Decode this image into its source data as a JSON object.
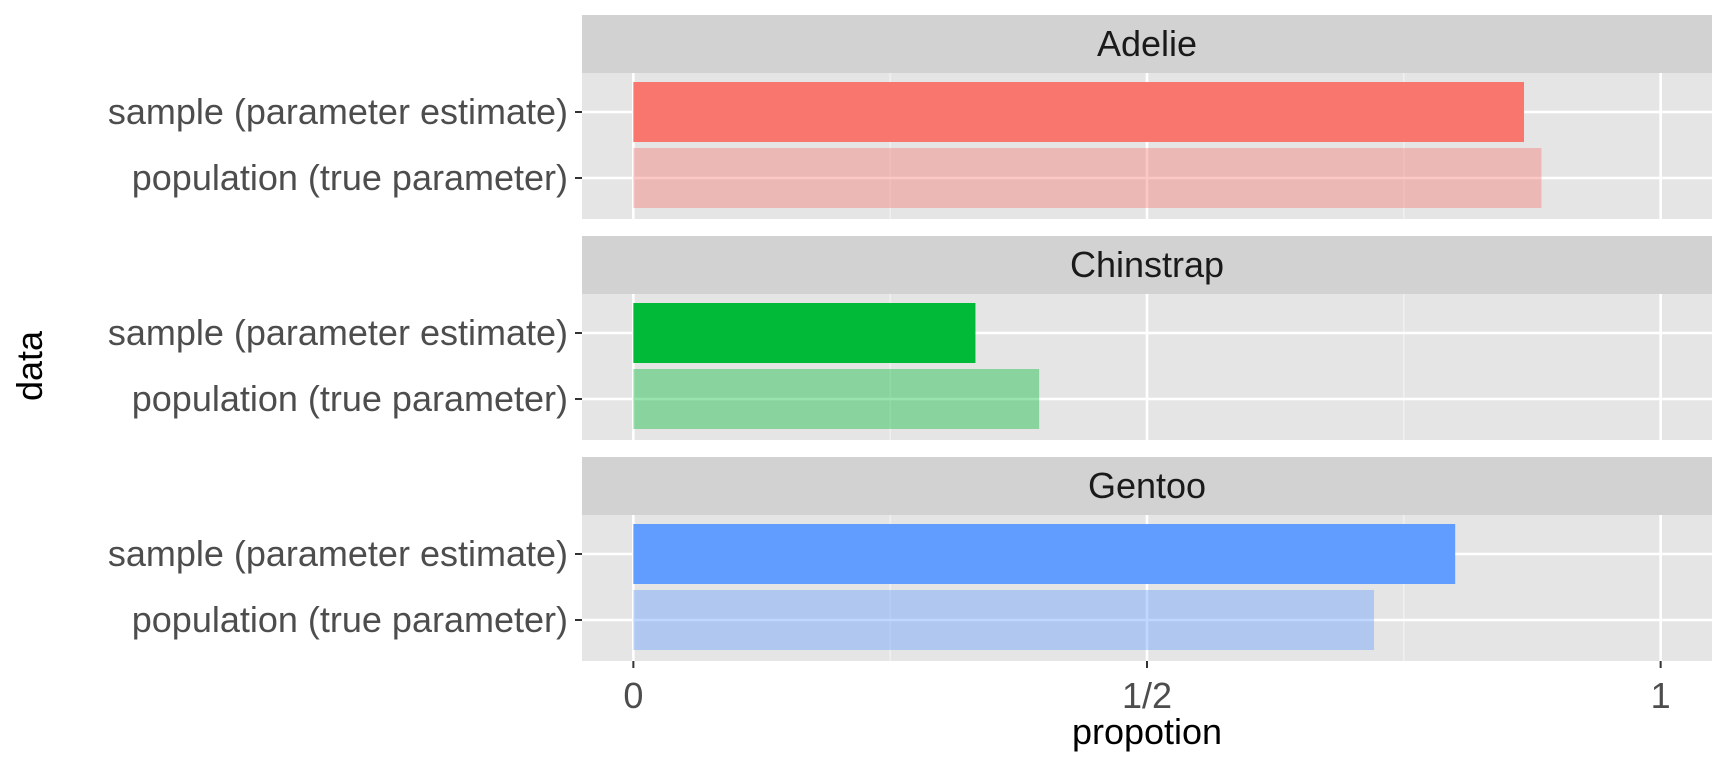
{
  "chart_data": {
    "type": "bar",
    "orientation": "horizontal",
    "xlabel": "propotion",
    "ylabel": "data",
    "xlim": [
      -0.05,
      1.05
    ],
    "x_ticks": [
      0,
      0.5,
      1
    ],
    "x_tick_labels": [
      "0",
      "1/2",
      "1"
    ],
    "categories": [
      "sample (parameter estimate)",
      "population (true parameter)"
    ],
    "grid": true,
    "legend": "none",
    "facets": [
      {
        "name": "Adelie",
        "color": "#F8766D",
        "bars": [
          {
            "category": "sample (parameter estimate)",
            "value": 0.867,
            "alpha": 1.0
          },
          {
            "category": "population (true parameter)",
            "value": 0.884,
            "alpha": 0.4
          }
        ]
      },
      {
        "name": "Chinstrap",
        "color": "#00BA38",
        "bars": [
          {
            "category": "sample (parameter estimate)",
            "value": 0.333,
            "alpha": 1.0
          },
          {
            "category": "population (true parameter)",
            "value": 0.395,
            "alpha": 0.4
          }
        ]
      },
      {
        "name": "Gentoo",
        "color": "#619CFF",
        "bars": [
          {
            "category": "sample (parameter estimate)",
            "value": 0.8,
            "alpha": 1.0
          },
          {
            "category": "population (true parameter)",
            "value": 0.721,
            "alpha": 0.4
          }
        ]
      }
    ]
  }
}
